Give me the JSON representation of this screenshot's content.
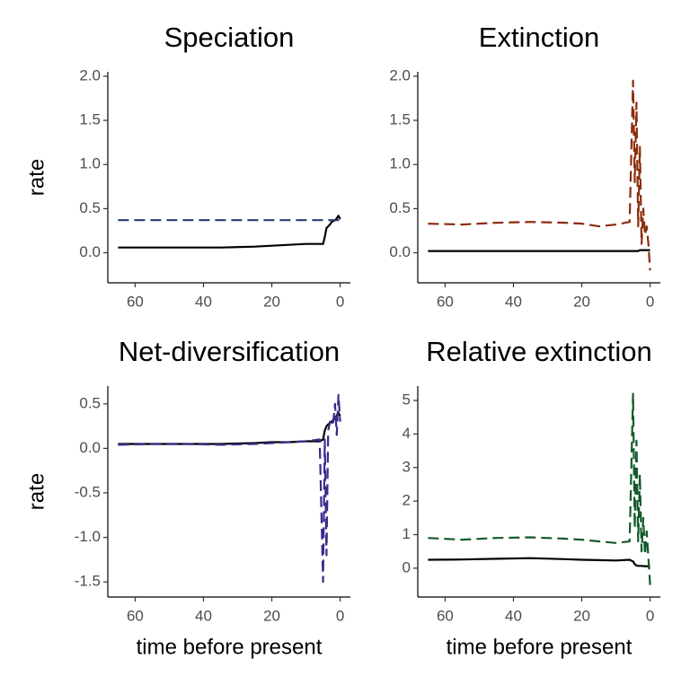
{
  "chart_data": [
    {
      "type": "line",
      "title": "Speciation",
      "ylabel": "rate",
      "x": [
        65,
        55,
        45,
        35,
        25,
        20,
        15,
        10,
        6,
        5,
        4.5,
        4,
        3.5,
        3,
        2.5,
        2,
        1.5,
        1,
        0.5,
        0
      ],
      "series": [
        {
          "color": "#000000",
          "dashed": false,
          "values": [
            0.06,
            0.06,
            0.06,
            0.06,
            0.07,
            0.08,
            0.09,
            0.1,
            0.1,
            0.1,
            0.18,
            0.28,
            0.3,
            0.32,
            0.35,
            0.36,
            0.37,
            0.39,
            0.42,
            0.38
          ]
        },
        {
          "color": "#2e3a6e",
          "dashed": true,
          "values": [
            0.37,
            0.37,
            0.37,
            0.37,
            0.37,
            0.37,
            0.37,
            0.37,
            0.37,
            0.37,
            0.37,
            0.37,
            0.37,
            0.37,
            0.37,
            0.37,
            0.37,
            0.37,
            0.37,
            0.37
          ]
        }
      ],
      "xlim": [
        68,
        -3
      ],
      "xticks": [
        60,
        40,
        20,
        0
      ],
      "ylim": [
        -0.34,
        2.05
      ],
      "yticks": [
        {
          "value": 0,
          "label": "0.0"
        },
        0.5,
        {
          "value": 1,
          "label": "1.0"
        },
        1.5,
        {
          "value": 2,
          "label": "2.0"
        }
      ]
    },
    {
      "type": "line",
      "title": "Extinction",
      "x": [
        65,
        55,
        45,
        35,
        25,
        20,
        15,
        10,
        6,
        5,
        4.5,
        4,
        3.5,
        3,
        2.5,
        2,
        1.5,
        1,
        0.5,
        0
      ],
      "series": [
        {
          "color": "#000000",
          "dashed": false,
          "values": [
            0.02,
            0.02,
            0.02,
            0.02,
            0.02,
            0.02,
            0.02,
            0.02,
            0.02,
            0.02,
            0.02,
            0.02,
            0.02,
            0.03,
            0.03,
            0.03,
            0.03,
            0.03,
            0.03,
            0.03
          ]
        },
        {
          "color": "#8b2d0c",
          "dashed": true,
          "values": [
            0.33,
            0.32,
            0.34,
            0.35,
            0.34,
            0.33,
            0.3,
            0.32,
            0.35,
            1.95,
            0.8,
            1.7,
            0.3,
            1.2,
            0.1,
            0.5,
            0.2,
            0.3,
            0.1,
            -0.2
          ]
        }
      ],
      "xlim": [
        68,
        -3
      ],
      "xticks": [
        60,
        40,
        20,
        0
      ],
      "ylim": [
        -0.34,
        2.05
      ],
      "yticks": [
        {
          "value": 0,
          "label": "0.0"
        },
        0.5,
        {
          "value": 1,
          "label": "1.0"
        },
        1.5,
        {
          "value": 2,
          "label": "2.0"
        }
      ]
    },
    {
      "type": "line",
      "title": "Net-diversification",
      "ylabel": "rate",
      "xlabel": "time before present",
      "x": [
        65,
        55,
        45,
        35,
        25,
        20,
        15,
        10,
        6,
        5,
        4.5,
        4,
        3.5,
        3,
        2.5,
        2,
        1.5,
        1,
        0.5,
        0
      ],
      "series": [
        {
          "color": "#000000",
          "dashed": false,
          "values": [
            0.05,
            0.05,
            0.05,
            0.05,
            0.06,
            0.07,
            0.07,
            0.08,
            0.08,
            0.1,
            0.2,
            0.25,
            0.27,
            0.28,
            0.3,
            0.32,
            0.34,
            0.37,
            0.4,
            0.36
          ]
        },
        {
          "color": "#3a2a8c",
          "dashed": true,
          "values": [
            0.04,
            0.05,
            0.05,
            0.04,
            0.05,
            0.06,
            0.07,
            0.08,
            0.1,
            -1.5,
            0.1,
            -1.2,
            0.2,
            0.3,
            0.25,
            0.3,
            0.5,
            0.15,
            0.6,
            0.3
          ]
        }
      ],
      "xlim": [
        68,
        -3
      ],
      "xticks": [
        60,
        40,
        20,
        0
      ],
      "ylim": [
        -1.67,
        0.7
      ],
      "yticks": [
        -1.5,
        {
          "value": -1,
          "label": "-1.0"
        },
        -0.5,
        {
          "value": 0,
          "label": "0.0"
        },
        0.5
      ]
    },
    {
      "type": "line",
      "title": "Relative extinction",
      "xlabel": "time before present",
      "x": [
        65,
        55,
        45,
        35,
        25,
        20,
        15,
        10,
        6,
        5,
        4.5,
        4,
        3.5,
        3,
        2.5,
        2,
        1.5,
        1,
        0.5,
        0
      ],
      "series": [
        {
          "color": "#000000",
          "dashed": false,
          "values": [
            0.25,
            0.26,
            0.28,
            0.3,
            0.27,
            0.25,
            0.24,
            0.23,
            0.25,
            0.2,
            0.12,
            0.08,
            0.07,
            0.07,
            0.07,
            0.06,
            0.06,
            0.06,
            0.05,
            0.05
          ]
        },
        {
          "color": "#145a2b",
          "dashed": true,
          "values": [
            0.9,
            0.85,
            0.9,
            0.92,
            0.88,
            0.85,
            0.8,
            0.75,
            0.8,
            5.2,
            1.2,
            3.8,
            0.8,
            2.8,
            0.5,
            1.5,
            0.4,
            1.1,
            0.3,
            -0.5
          ]
        }
      ],
      "xlim": [
        68,
        -3
      ],
      "xticks": [
        60,
        40,
        20,
        0
      ],
      "ylim": [
        -0.86,
        5.43
      ],
      "yticks": [
        0,
        1,
        2,
        3,
        4,
        5
      ]
    }
  ]
}
